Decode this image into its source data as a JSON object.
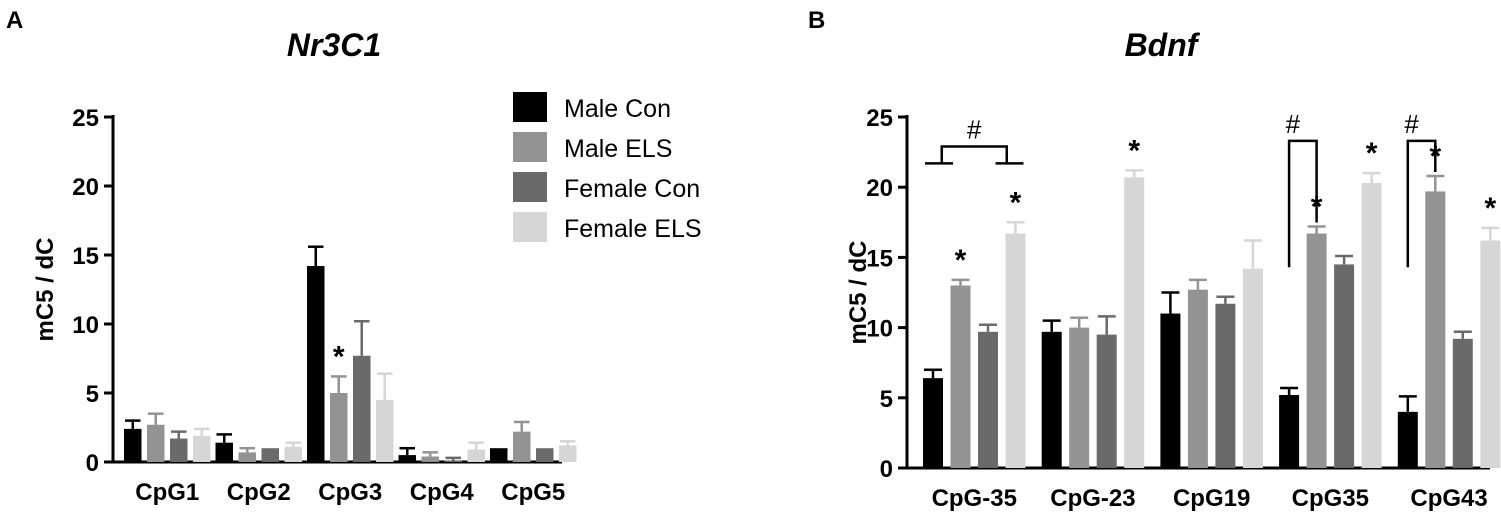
{
  "chart_data": [
    {
      "type": "bar",
      "panel": "A",
      "title": "Nr3C1",
      "xlabel": "",
      "ylabel": "mC5 / dC",
      "ylim": [
        0,
        25
      ],
      "yticks": [
        0,
        5,
        10,
        15,
        20,
        25
      ],
      "categories": [
        "CpG1",
        "CpG2",
        "CpG3",
        "CpG4",
        "CpG5"
      ],
      "series": [
        {
          "name": "Male Con",
          "color": "#000000",
          "values": [
            2.4,
            1.4,
            14.2,
            0.5,
            1.0
          ],
          "errors": [
            0.6,
            0.6,
            1.4,
            0.5,
            0.0
          ]
        },
        {
          "name": "Male ELS",
          "color": "#939393",
          "values": [
            2.7,
            0.7,
            5.0,
            0.4,
            2.2
          ],
          "errors": [
            0.8,
            0.3,
            1.2,
            0.3,
            0.7
          ]
        },
        {
          "name": "Female Con",
          "color": "#6a6a6a",
          "values": [
            1.7,
            1.0,
            7.7,
            0.1,
            1.0
          ],
          "errors": [
            0.5,
            0.0,
            2.5,
            0.2,
            0.0
          ]
        },
        {
          "name": "Female ELS",
          "color": "#d6d6d6",
          "values": [
            1.9,
            1.1,
            4.5,
            0.9,
            1.2
          ],
          "errors": [
            0.5,
            0.3,
            1.9,
            0.5,
            0.3
          ]
        }
      ],
      "annotations": [
        {
          "text": "*",
          "category": "CpG3",
          "series": "Male ELS"
        }
      ],
      "legend": "top-right"
    },
    {
      "type": "bar",
      "panel": "B",
      "title": "Bdnf",
      "xlabel": "",
      "ylabel": "mC5 / dC",
      "ylim": [
        0,
        25
      ],
      "yticks": [
        0,
        5,
        10,
        15,
        20,
        25
      ],
      "categories": [
        "CpG-35",
        "CpG-23",
        "CpG19",
        "CpG35",
        "CpG43"
      ],
      "series": [
        {
          "name": "Male Con",
          "color": "#000000",
          "values": [
            6.4,
            9.7,
            11.0,
            5.2,
            4.0
          ],
          "errors": [
            0.6,
            0.8,
            1.5,
            0.5,
            1.1
          ]
        },
        {
          "name": "Male ELS",
          "color": "#939393",
          "values": [
            13.0,
            10.0,
            12.7,
            16.7,
            19.7
          ],
          "errors": [
            0.4,
            0.7,
            0.7,
            0.5,
            1.1
          ]
        },
        {
          "name": "Female Con",
          "color": "#6a6a6a",
          "values": [
            9.7,
            9.5,
            11.7,
            14.5,
            9.2
          ],
          "errors": [
            0.5,
            1.3,
            0.5,
            0.6,
            0.5
          ]
        },
        {
          "name": "Female ELS",
          "color": "#d6d6d6",
          "values": [
            16.7,
            20.7,
            14.2,
            20.3,
            16.2
          ],
          "errors": [
            0.8,
            0.5,
            2.0,
            0.7,
            0.9
          ]
        }
      ],
      "annotations": [
        {
          "text": "*",
          "category": "CpG-35",
          "series": "Male ELS"
        },
        {
          "text": "*",
          "category": "CpG-35",
          "series": "Female ELS"
        },
        {
          "text": "*",
          "category": "CpG-23",
          "series": "Female ELS"
        },
        {
          "text": "*",
          "category": "CpG35",
          "series": "Male ELS"
        },
        {
          "text": "*",
          "category": "CpG35",
          "series": "Female ELS"
        },
        {
          "text": "*",
          "category": "CpG43",
          "series": "Male ELS"
        },
        {
          "text": "*",
          "category": "CpG43",
          "series": "Female ELS"
        },
        {
          "text": "#",
          "category": "CpG-35",
          "kind": "bracket-interaction"
        },
        {
          "text": "#",
          "category": "CpG35",
          "kind": "bracket",
          "from": "Male Con",
          "to": "Male ELS"
        },
        {
          "text": "#",
          "category": "CpG43",
          "kind": "bracket",
          "from": "Male Con",
          "to": "Male ELS"
        }
      ]
    }
  ]
}
